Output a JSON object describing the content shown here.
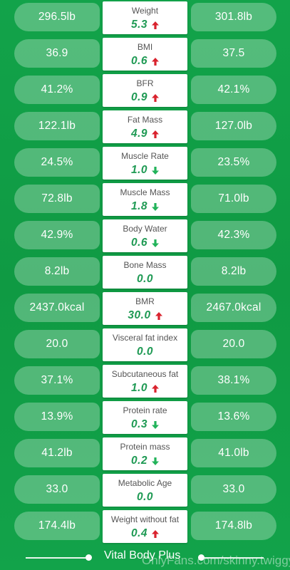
{
  "rows": [
    {
      "name": "Weight",
      "left": "296.5lb",
      "change": "5.3",
      "direction": "up",
      "right": "301.8lb"
    },
    {
      "name": "BMI",
      "left": "36.9",
      "change": "0.6",
      "direction": "up",
      "right": "37.5"
    },
    {
      "name": "BFR",
      "left": "41.2%",
      "change": "0.9",
      "direction": "up",
      "right": "42.1%"
    },
    {
      "name": "Fat Mass",
      "left": "122.1lb",
      "change": "4.9",
      "direction": "up",
      "right": "127.0lb"
    },
    {
      "name": "Muscle Rate",
      "left": "24.5%",
      "change": "1.0",
      "direction": "down",
      "right": "23.5%"
    },
    {
      "name": "Muscle Mass",
      "left": "72.8lb",
      "change": "1.8",
      "direction": "down",
      "right": "71.0lb"
    },
    {
      "name": "Body Water",
      "left": "42.9%",
      "change": "0.6",
      "direction": "down",
      "right": "42.3%"
    },
    {
      "name": "Bone Mass",
      "left": "8.2lb",
      "change": "0.0",
      "direction": "none",
      "right": "8.2lb"
    },
    {
      "name": "BMR",
      "left": "2437.0kcal",
      "change": "30.0",
      "direction": "up",
      "right": "2467.0kcal"
    },
    {
      "name": "Visceral fat index",
      "left": "20.0",
      "change": "0.0",
      "direction": "none",
      "right": "20.0"
    },
    {
      "name": "Subcutaneous fat",
      "left": "37.1%",
      "change": "1.0",
      "direction": "up",
      "right": "38.1%"
    },
    {
      "name": "Protein rate",
      "left": "13.9%",
      "change": "0.3",
      "direction": "down",
      "right": "13.6%"
    },
    {
      "name": "Protein mass",
      "left": "41.2lb",
      "change": "0.2",
      "direction": "down",
      "right": "41.0lb"
    },
    {
      "name": "Metabolic Age",
      "left": "33.0",
      "change": "0.0",
      "direction": "none",
      "right": "33.0"
    },
    {
      "name": "Weight without fat",
      "left": "174.4lb",
      "change": "0.4",
      "direction": "up",
      "right": "174.8lb"
    }
  ],
  "colors": {
    "background": "#12a34a",
    "value_green": "#1f9a54",
    "arrow_up": "#d9232e",
    "arrow_down": "#22b35a"
  },
  "footer": {
    "title": "Vital Body Plus"
  },
  "watermark": "OnlyFans.com/skinny.twiggy"
}
